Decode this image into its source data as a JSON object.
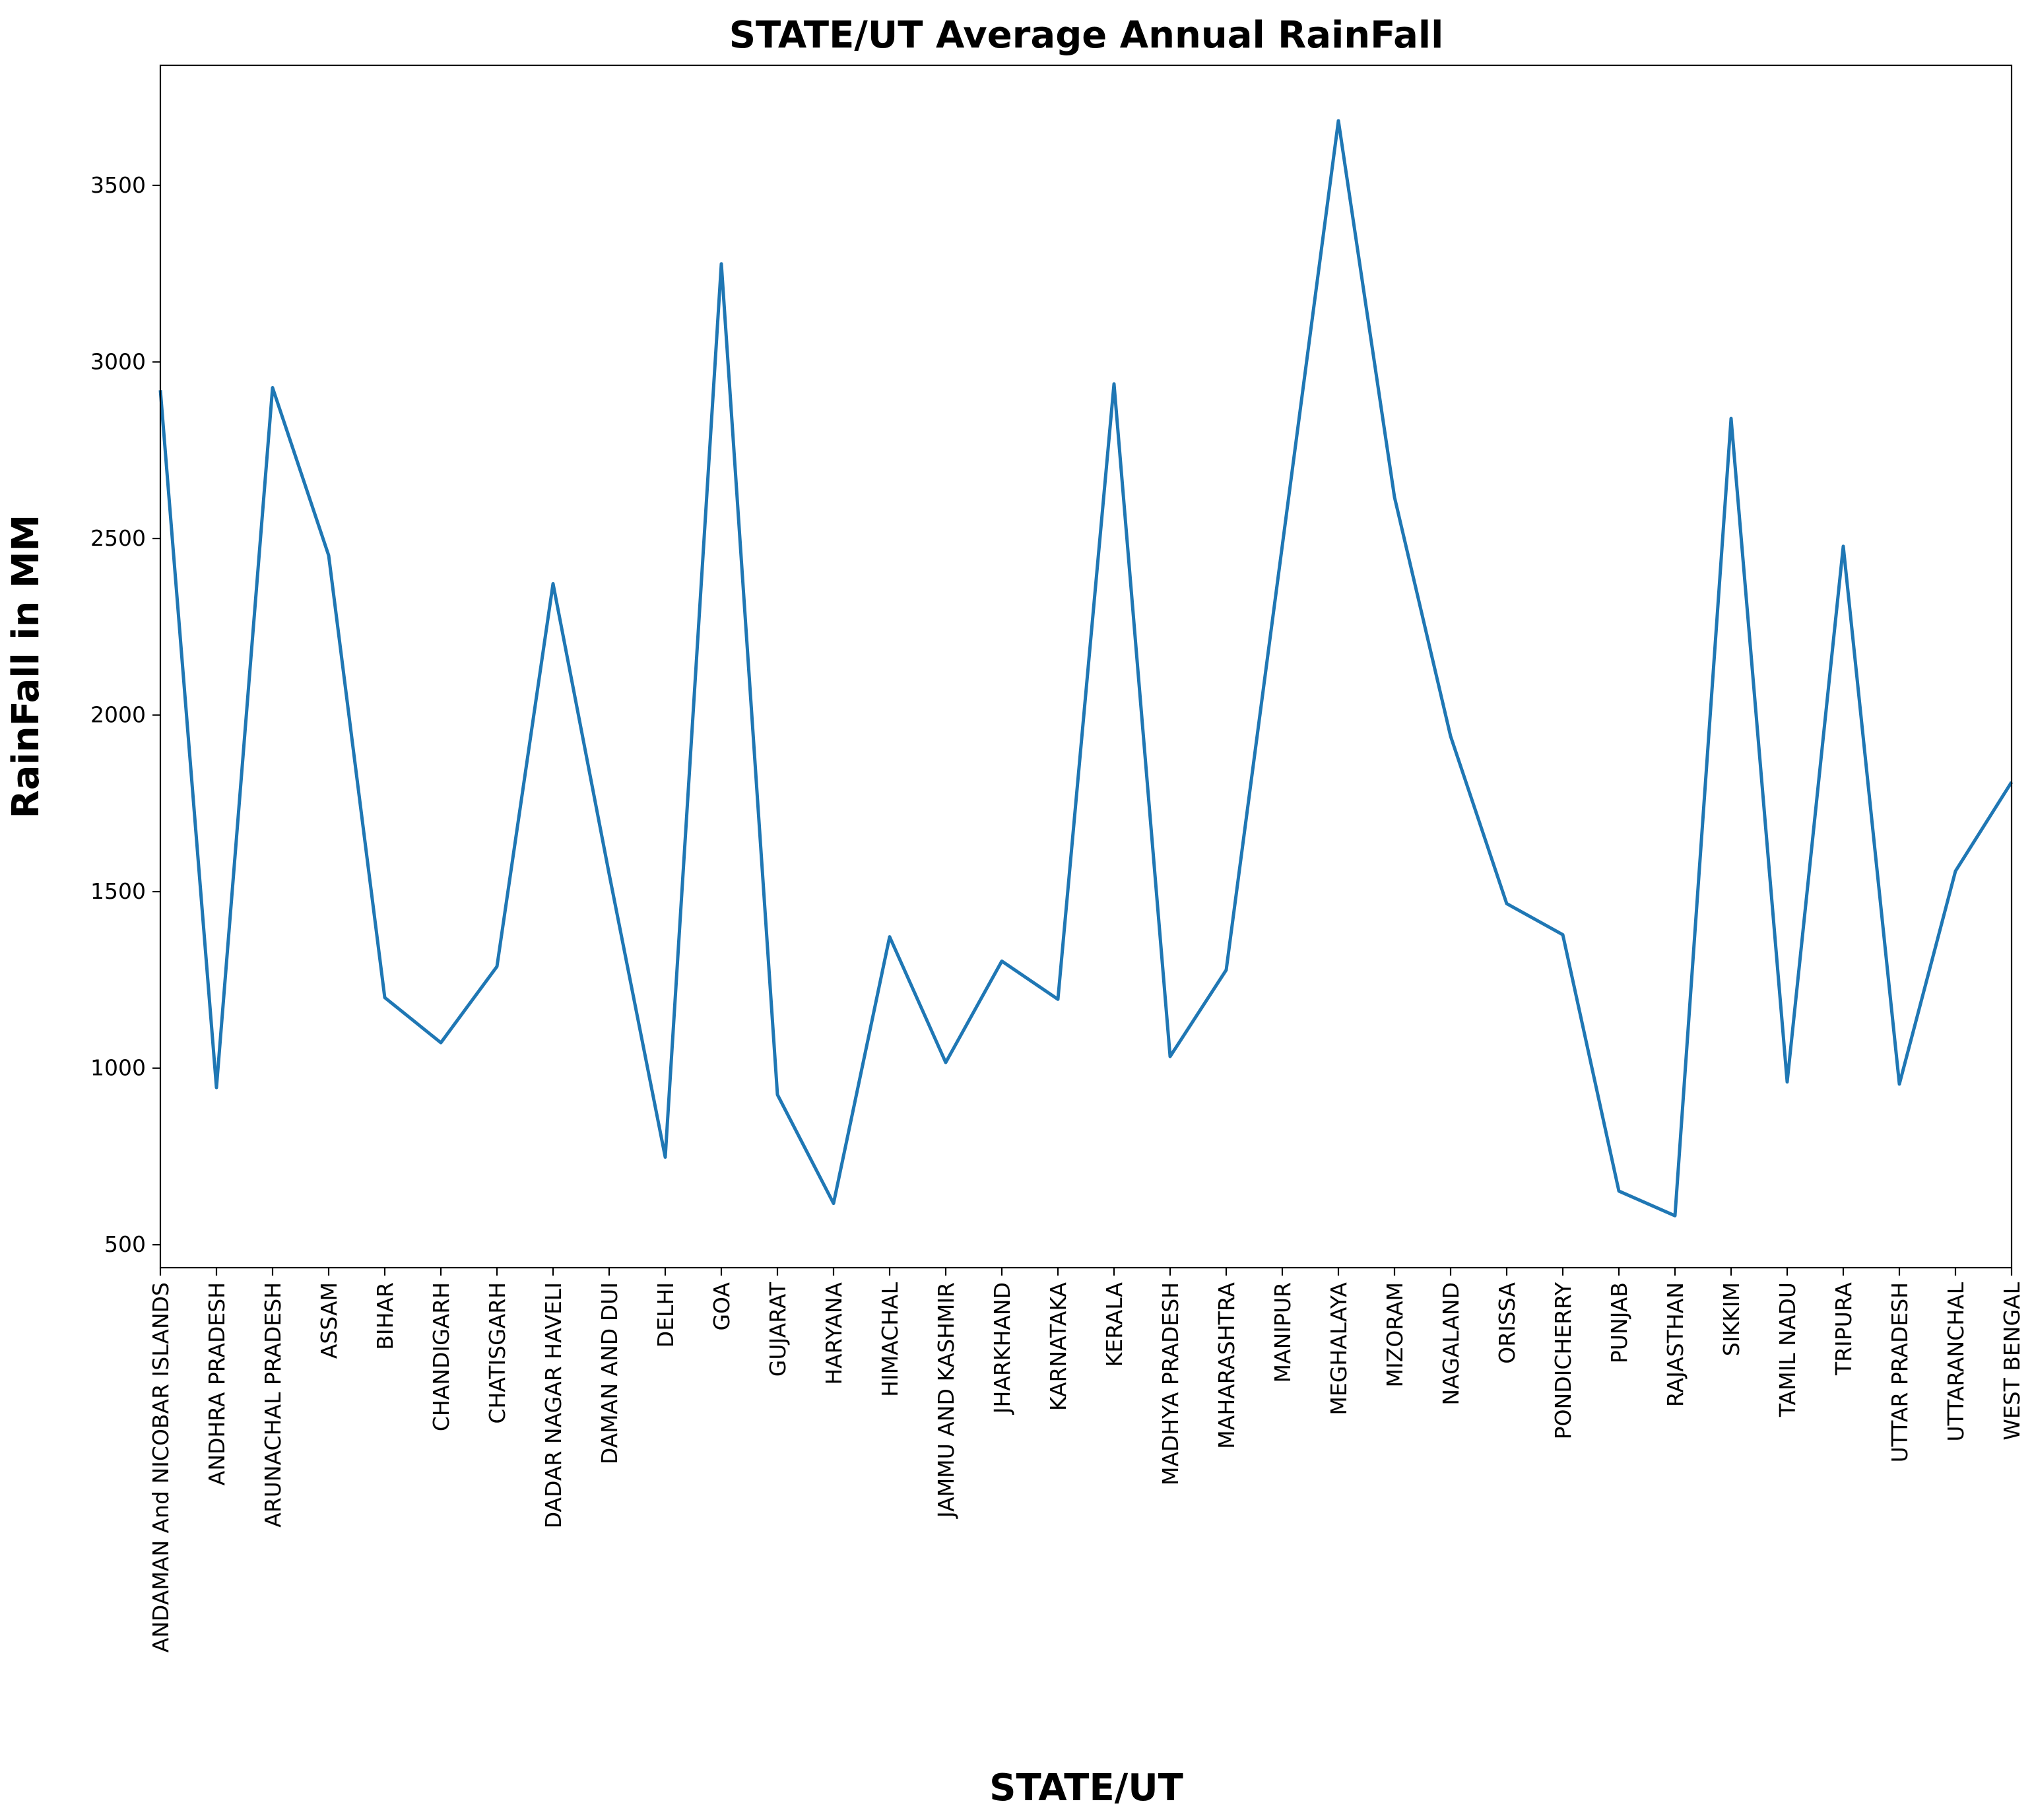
{
  "chart_data": {
    "type": "line",
    "title": "STATE/UT Average Annual RainFall",
    "xlabel": "STATE/UT",
    "ylabel": "RainFall in MM",
    "categories": [
      "ANDAMAN And NICOBAR ISLANDS",
      "ANDHRA PRADESH",
      "ARUNACHAL PRADESH",
      "ASSAM",
      "BIHAR",
      "CHANDIGARH",
      "CHATISGARH",
      "DADAR NAGAR HAVELI",
      "DAMAN AND DUI",
      "DELHI",
      "GOA",
      "GUJARAT",
      "HARYANA",
      "HIMACHAL",
      "JAMMU AND KASHMIR",
      "JHARKHAND",
      "KARNATAKA",
      "KERALA",
      "MADHYA PRADESH",
      "MAHARASHTRA",
      "MANIPUR",
      "MEGHALAYA",
      "MIZORAM",
      "NAGALAND",
      "ORISSA",
      "PONDICHERRY",
      "PUNJAB",
      "RAJASTHAN",
      "SIKKIM",
      "TAMIL NADU",
      "TRIPURA",
      "UTTAR PRADESH",
      "UTTARANCHAL",
      "WEST BENGAL"
    ],
    "series": [
      {
        "values": [
          2920,
          945,
          2927,
          2452,
          1200,
          1072,
          1288,
          2372,
          1550,
          748,
          3278,
          925,
          617,
          1372,
          1016,
          1303,
          1195,
          2938,
          1033,
          1278,
          2480,
          3683,
          2617,
          1940,
          1466,
          1378,
          652,
          582,
          2840,
          961,
          2478,
          955,
          1558,
          1810
        ],
        "color": "#1f77b4"
      }
    ],
    "yticks": [
      500,
      1000,
      1500,
      2000,
      2500,
      3000,
      3500
    ],
    "ylim": [
      435,
      3840
    ],
    "grid": false,
    "legend": "none"
  }
}
